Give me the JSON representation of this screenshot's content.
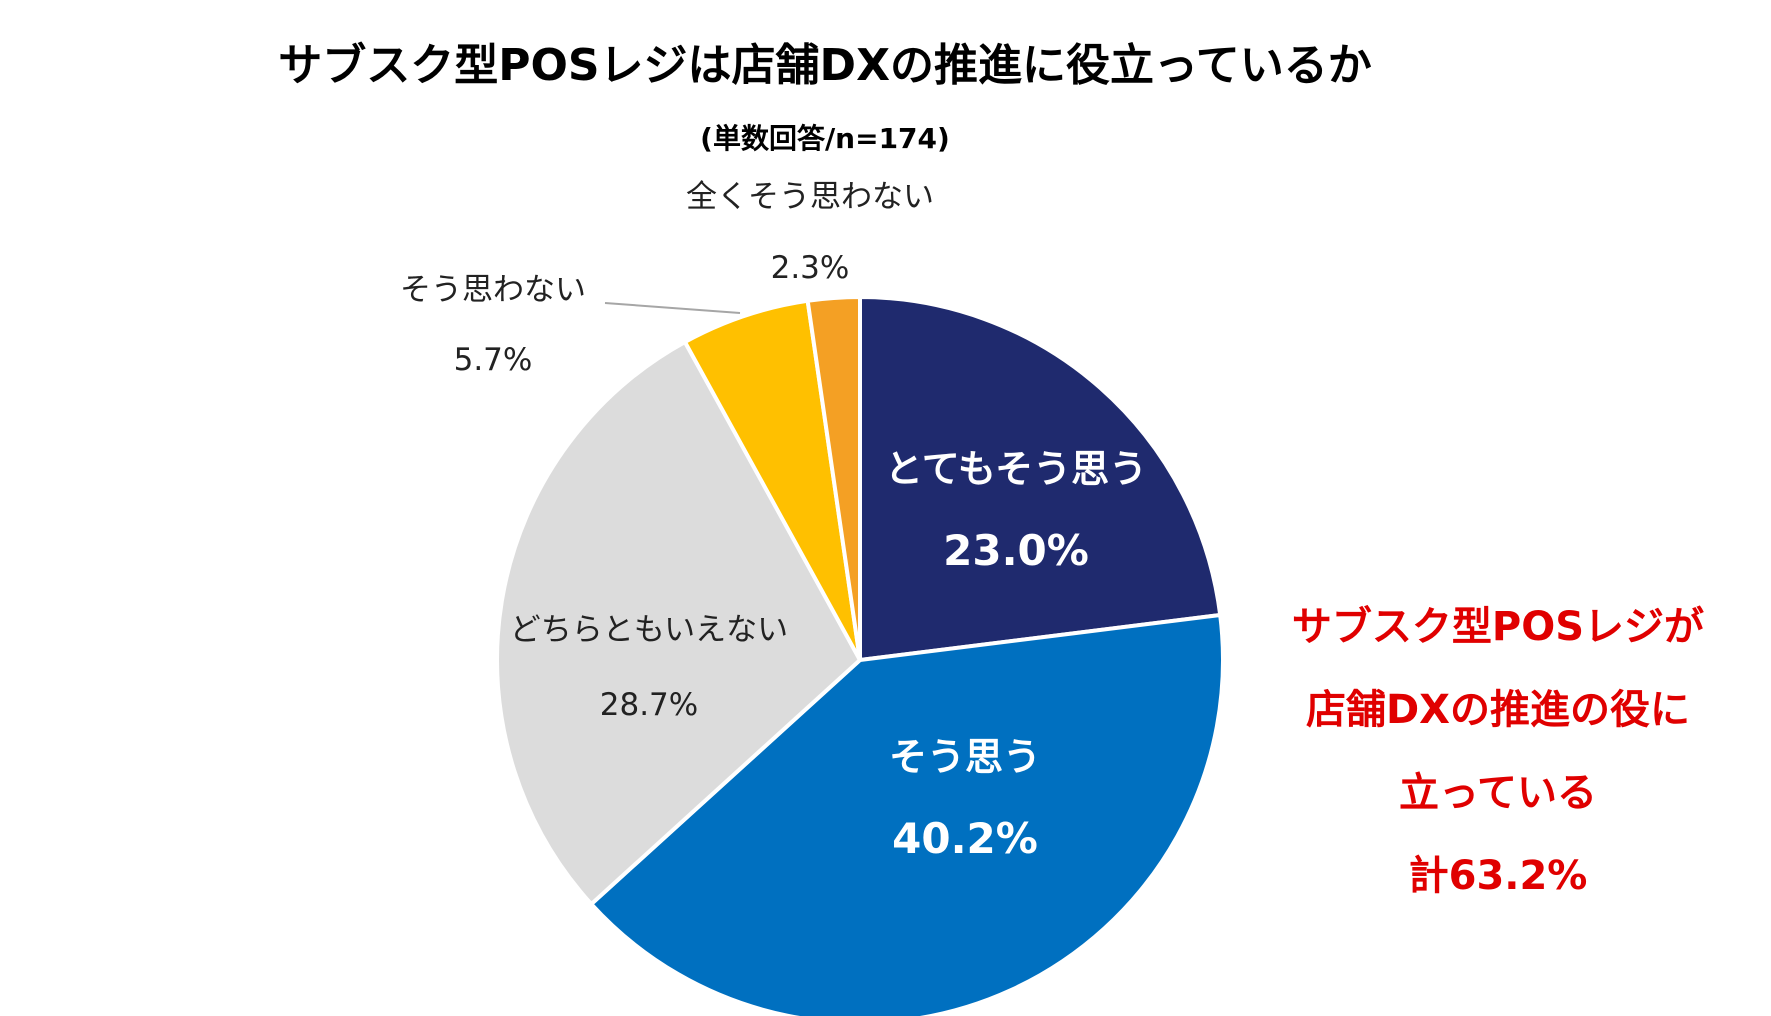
{
  "chart_data": {
    "type": "pie",
    "title": "サブスク型POSレジは店舗DXの推進に役立っているか",
    "subtitle": "(単数回答/n=174)",
    "slices": [
      {
        "label": "とてもそう思う",
        "value": 23.0,
        "value_label": "23.0%",
        "color": "#1f2a6e"
      },
      {
        "label": "そう思う",
        "value": 40.2,
        "value_label": "40.2%",
        "color": "#0070c0"
      },
      {
        "label": "どちらともいえない",
        "value": 28.7,
        "value_label": "28.7%",
        "color": "#dcdcdc"
      },
      {
        "label": "そう思わない",
        "value": 5.7,
        "value_label": "5.7%",
        "color": "#ffc000"
      },
      {
        "label": "全くそう思わない",
        "value": 2.3,
        "value_label": "2.3%",
        "color": "#f4a024"
      }
    ],
    "annotation": {
      "lines": [
        "サブスク型POSレジが",
        "店舗DXの推進の役に",
        "立っている",
        "計63.2%"
      ],
      "color": "#e00000"
    }
  }
}
